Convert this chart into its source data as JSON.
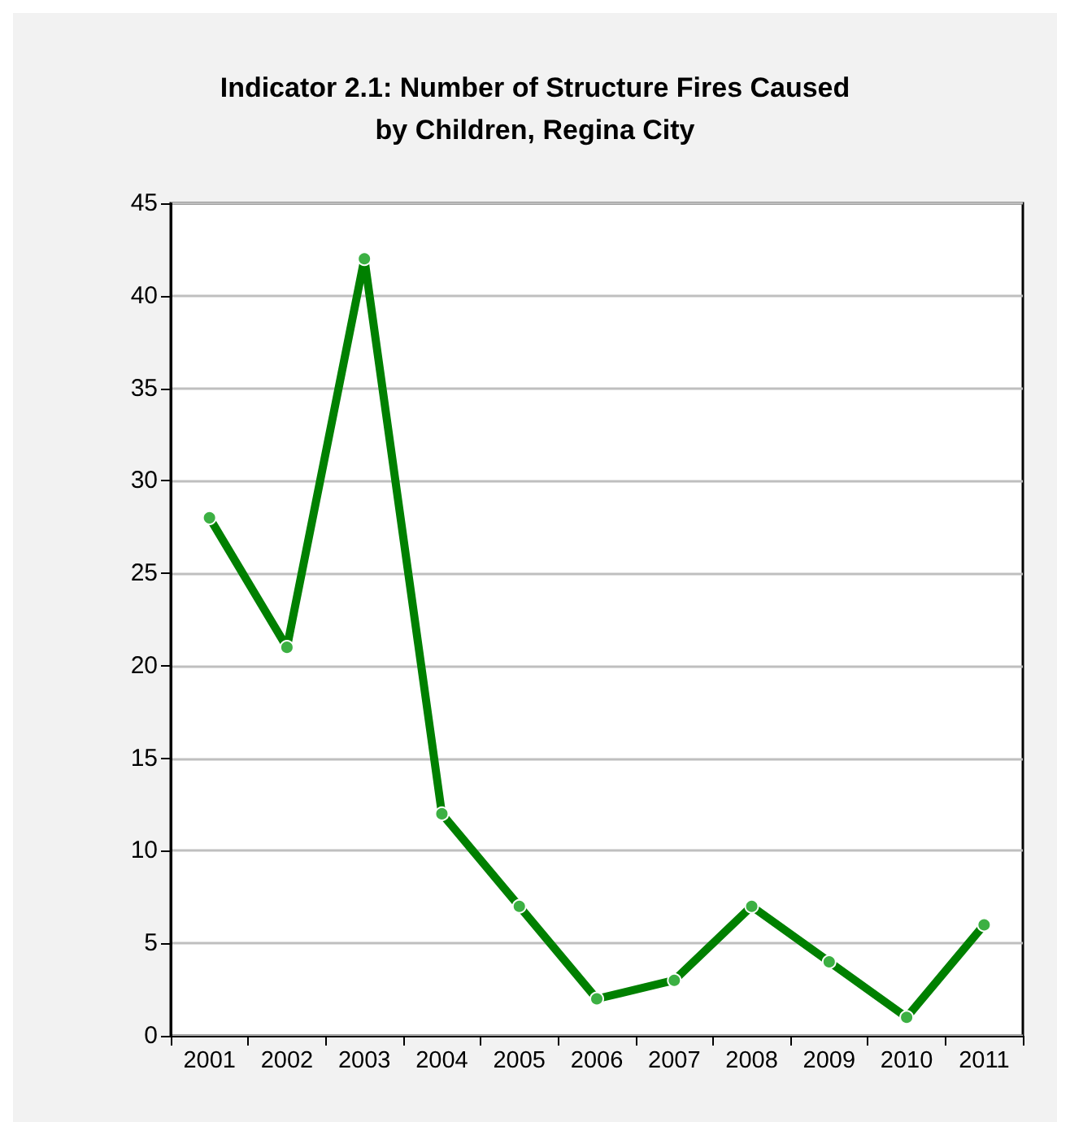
{
  "chart_data": {
    "type": "line",
    "title": "Indicator 2.1: Number of Structure Fires Caused\nby Children, Regina City",
    "categories": [
      "2001",
      "2002",
      "2003",
      "2004",
      "2005",
      "2006",
      "2007",
      "2008",
      "2009",
      "2010",
      "2011"
    ],
    "series": [
      {
        "color": "#008000",
        "values": [
          28,
          21,
          42,
          12,
          7,
          2,
          3,
          7,
          4,
          1,
          6
        ]
      }
    ],
    "ylim": [
      0,
      45
    ],
    "yticks": [
      0,
      5,
      10,
      15,
      20,
      25,
      30,
      35,
      40,
      45
    ],
    "grid": "y",
    "marker": "circle",
    "line_style": "solid"
  }
}
